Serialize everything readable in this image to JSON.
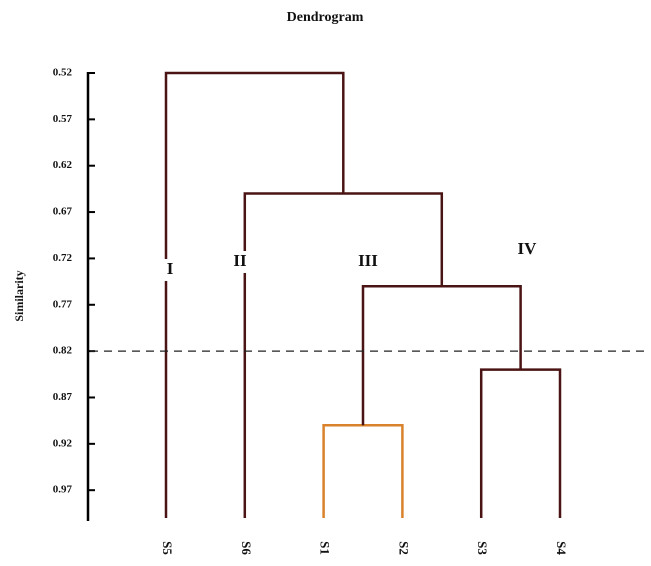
{
  "chart_data": {
    "type": "dendrogram",
    "title": "Dendrogram",
    "ylabel": "Similarity",
    "ylim": [
      0.52,
      1.0
    ],
    "yticks": [
      0.52,
      0.57,
      0.62,
      0.67,
      0.72,
      0.77,
      0.82,
      0.87,
      0.92,
      0.97
    ],
    "inverted_y": true,
    "leaves": [
      "S5",
      "S6",
      "S1",
      "S2",
      "S3",
      "S4"
    ],
    "merges": [
      {
        "children": [
          2,
          3
        ],
        "height": 0.9,
        "color": "#d9822b"
      },
      {
        "children": [
          4,
          5
        ],
        "height": 0.84,
        "color": "#4a1414"
      },
      {
        "children": [
          6,
          7
        ],
        "height": 0.75,
        "color": "#4a1414"
      },
      {
        "children": [
          1,
          8
        ],
        "height": 0.65,
        "color": "#4a1414"
      },
      {
        "children": [
          0,
          9
        ],
        "height": 0.52,
        "color": "#4a1414"
      }
    ],
    "cut": 0.82,
    "annotations": [
      "I",
      "II",
      "III",
      "IV"
    ]
  }
}
